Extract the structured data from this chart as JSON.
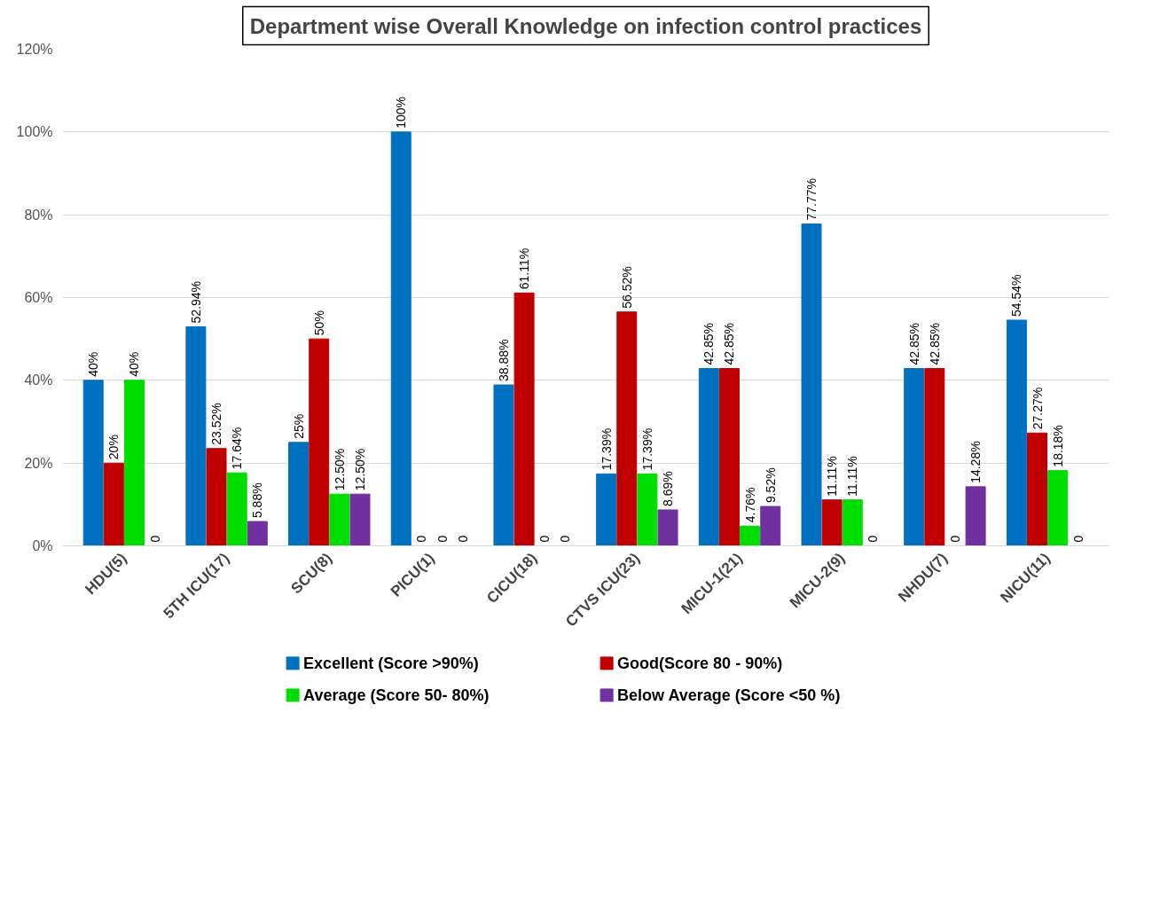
{
  "chart_data": {
    "type": "bar",
    "title": "Department wise Overall Knowledge on infection control practices",
    "categories": [
      "HDU(5)",
      "5TH ICU(17)",
      "SCU(8)",
      "PICU(1)",
      "CICU(18)",
      "CTVS ICU(23)",
      "MICU-1(21)",
      "MICU-2(9)",
      "NHDU(7)",
      "NICU(11)"
    ],
    "series": [
      {
        "name": "Excellent (Score >90%)",
        "color": "#0070c0",
        "values": [
          40,
          52.94,
          25,
          100,
          38.88,
          17.39,
          42.85,
          77.77,
          42.85,
          54.54
        ],
        "value_labels": [
          "40%",
          "52.94%",
          "25%",
          "100%",
          "38.88%",
          "17.39%",
          "42.85%",
          "77.77%",
          "42.85%",
          "54.54%"
        ]
      },
      {
        "name": "Good(Score 80 - 90%)",
        "color": "#c00000",
        "values": [
          20,
          23.52,
          50,
          0,
          61.11,
          56.52,
          42.85,
          11.11,
          42.85,
          27.27
        ],
        "value_labels": [
          "20%",
          "23.52%",
          "50%",
          "0",
          "61.11%",
          "56.52%",
          "42.85%",
          "11.11%",
          "42.85%",
          "27.27%"
        ]
      },
      {
        "name": "Average (Score 50- 80%)",
        "color": "#00dd00",
        "values": [
          40,
          17.64,
          12.5,
          0,
          0,
          17.39,
          4.76,
          11.11,
          0,
          18.18
        ],
        "value_labels": [
          "40%",
          "17.64%",
          "12.50%",
          "0",
          "0",
          "17.39%",
          "4.76%",
          "11.11%",
          "0",
          "18.18%"
        ]
      },
      {
        "name": "Below Average (Score <50 %)",
        "color": "#7030a0",
        "values": [
          0,
          5.88,
          12.5,
          0,
          0,
          8.69,
          9.52,
          0,
          14.28,
          0
        ],
        "value_labels": [
          "0",
          "5.88%",
          "12.50%",
          "0",
          "0",
          "8.69%",
          "9.52%",
          "0",
          "14.28%",
          "0"
        ]
      }
    ],
    "ylim": [
      0,
      120
    ],
    "yticks": [
      {
        "value": 0,
        "label": "0%"
      },
      {
        "value": 20,
        "label": "20%"
      },
      {
        "value": 40,
        "label": "40%"
      },
      {
        "value": 60,
        "label": "60%"
      },
      {
        "value": 80,
        "label": "80%"
      },
      {
        "value": 100,
        "label": "100%"
      },
      {
        "value": 120,
        "label": "120%"
      }
    ],
    "grid": "y",
    "legend": "bottom"
  }
}
